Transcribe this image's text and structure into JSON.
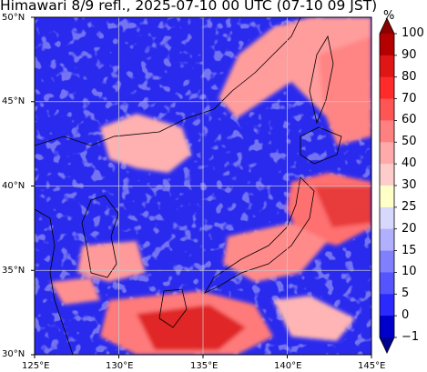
{
  "title": "Himawari 8/9 refl., 2025-07-10 00 UTC (07-10 09 JST)",
  "colorbar": {
    "unit": "%",
    "levels": [
      "100",
      "90",
      "80",
      "70",
      "60",
      "50",
      "40",
      "30",
      "25",
      "20",
      "15",
      "10",
      "5",
      "0",
      "−1"
    ],
    "colors": [
      "#8b0000",
      "#b40000",
      "#e01515",
      "#ff2a2a",
      "#ff5555",
      "#ff8080",
      "#ffaaaa",
      "#ffcccc",
      "#ffffc8",
      "#d8d8ff",
      "#b0b0ff",
      "#8080ff",
      "#5555ff",
      "#2a2aff",
      "#0000cc",
      "#000090"
    ]
  },
  "map": {
    "lat_labels": [
      "50°N",
      "45°N",
      "40°N",
      "35°N",
      "30°N"
    ],
    "lon_labels": [
      "125°E",
      "130°E",
      "135°E",
      "140°E",
      "145°E"
    ],
    "colors": {
      "ocean": "#2626e8",
      "cloud_low": "#ff9a9a",
      "cloud_high": "#e83030",
      "cloud_light": "#ffc8c8"
    }
  }
}
